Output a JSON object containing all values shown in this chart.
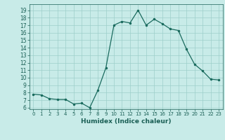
{
  "x": [
    0,
    1,
    2,
    3,
    4,
    5,
    6,
    7,
    8,
    9,
    10,
    11,
    12,
    13,
    14,
    15,
    16,
    17,
    18,
    19,
    20,
    21,
    22,
    23
  ],
  "y": [
    7.8,
    7.7,
    7.2,
    7.1,
    7.1,
    6.5,
    6.6,
    6.0,
    8.3,
    11.3,
    17.0,
    17.5,
    17.3,
    19.0,
    17.0,
    17.8,
    17.2,
    16.5,
    16.3,
    13.8,
    11.8,
    10.9,
    9.8,
    9.7
  ],
  "xlabel": "Humidex (Indice chaleur)",
  "xlim": [
    -0.5,
    23.5
  ],
  "ylim": [
    5.8,
    19.8
  ],
  "yticks": [
    6,
    7,
    8,
    9,
    10,
    11,
    12,
    13,
    14,
    15,
    16,
    17,
    18,
    19
  ],
  "xticks": [
    0,
    1,
    2,
    3,
    4,
    5,
    6,
    7,
    8,
    9,
    10,
    11,
    12,
    13,
    14,
    15,
    16,
    17,
    18,
    19,
    20,
    21,
    22,
    23
  ],
  "line_color": "#1a6b5e",
  "marker_color": "#1a6b5e",
  "bg_color": "#c8ebe8",
  "grid_color": "#9dcfca",
  "tick_color": "#1a5f55",
  "label_color": "#1a5f55"
}
